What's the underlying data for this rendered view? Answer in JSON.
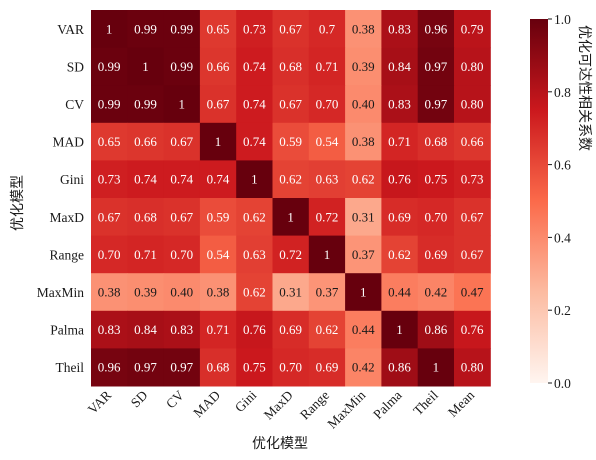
{
  "chart_data": {
    "type": "heatmap",
    "title": "",
    "xlabel": "优化模型",
    "ylabel": "优化模型",
    "colorbar_label": "优化可达性相关系数",
    "colorbar_range": [
      0,
      1
    ],
    "colorbar_ticks": [
      "0.0",
      "0.2",
      "0.4",
      "0.6",
      "0.8",
      "1.0"
    ],
    "colormap": [
      "#fff5f0",
      "#fcbba1",
      "#fb6a4a",
      "#cb181d",
      "#67000d"
    ],
    "x_categories": [
      "VAR",
      "SD",
      "CV",
      "MAD",
      "Gini",
      "MaxD",
      "Range",
      "MaxMin",
      "Palma",
      "Theil",
      "Mean"
    ],
    "y_categories": [
      "VAR",
      "SD",
      "CV",
      "MAD",
      "Gini",
      "MaxD",
      "Range",
      "MaxMin",
      "Palma",
      "Theil"
    ],
    "values": [
      [
        1,
        0.99,
        0.99,
        0.65,
        0.73,
        0.67,
        0.7,
        0.38,
        0.83,
        0.96,
        0.79
      ],
      [
        0.99,
        1,
        0.99,
        0.66,
        0.74,
        0.68,
        0.71,
        0.39,
        0.84,
        0.97,
        0.8
      ],
      [
        0.99,
        0.99,
        1,
        0.67,
        0.74,
        0.67,
        0.7,
        0.4,
        0.83,
        0.97,
        0.8
      ],
      [
        0.65,
        0.66,
        0.67,
        1,
        0.74,
        0.59,
        0.54,
        0.38,
        0.71,
        0.68,
        0.66
      ],
      [
        0.73,
        0.74,
        0.74,
        0.74,
        1,
        0.62,
        0.63,
        0.62,
        0.76,
        0.75,
        0.73
      ],
      [
        0.67,
        0.68,
        0.67,
        0.59,
        0.62,
        1,
        0.72,
        0.31,
        0.69,
        0.7,
        0.67
      ],
      [
        0.7,
        0.71,
        0.7,
        0.54,
        0.63,
        0.72,
        1,
        0.37,
        0.62,
        0.69,
        0.67
      ],
      [
        0.38,
        0.39,
        0.4,
        0.38,
        0.62,
        0.31,
        0.37,
        1,
        0.44,
        0.42,
        0.47
      ],
      [
        0.83,
        0.84,
        0.83,
        0.71,
        0.76,
        0.69,
        0.62,
        0.44,
        1,
        0.86,
        0.76
      ],
      [
        0.96,
        0.97,
        0.97,
        0.68,
        0.75,
        0.7,
        0.69,
        0.42,
        0.86,
        1,
        0.8
      ]
    ],
    "value_labels": [
      [
        "1",
        "0.99",
        "0.99",
        "0.65",
        "0.73",
        "0.67",
        "0.7",
        "0.38",
        "0.83",
        "0.96",
        "0.79"
      ],
      [
        "0.99",
        "1",
        "0.99",
        "0.66",
        "0.74",
        "0.68",
        "0.71",
        "0.39",
        "0.84",
        "0.97",
        "0.80"
      ],
      [
        "0.99",
        "0.99",
        "1",
        "0.67",
        "0.74",
        "0.67",
        "0.70",
        "0.40",
        "0.83",
        "0.97",
        "0.80"
      ],
      [
        "0.65",
        "0.66",
        "0.67",
        "1",
        "0.74",
        "0.59",
        "0.54",
        "0.38",
        "0.71",
        "0.68",
        "0.66"
      ],
      [
        "0.73",
        "0.74",
        "0.74",
        "0.74",
        "1",
        "0.62",
        "0.63",
        "0.62",
        "0.76",
        "0.75",
        "0.73"
      ],
      [
        "0.67",
        "0.68",
        "0.67",
        "0.59",
        "0.62",
        "1",
        "0.72",
        "0.31",
        "0.69",
        "0.70",
        "0.67"
      ],
      [
        "0.70",
        "0.71",
        "0.70",
        "0.54",
        "0.63",
        "0.72",
        "1",
        "0.37",
        "0.62",
        "0.69",
        "0.67"
      ],
      [
        "0.38",
        "0.39",
        "0.40",
        "0.38",
        "0.62",
        "0.31",
        "0.37",
        "1",
        "0.44",
        "0.42",
        "0.47"
      ],
      [
        "0.83",
        "0.84",
        "0.83",
        "0.71",
        "0.76",
        "0.69",
        "0.62",
        "0.44",
        "1",
        "0.86",
        "0.76"
      ],
      [
        "0.96",
        "0.97",
        "0.97",
        "0.68",
        "0.75",
        "0.70",
        "0.69",
        "0.42",
        "0.86",
        "1",
        "0.80"
      ]
    ]
  }
}
